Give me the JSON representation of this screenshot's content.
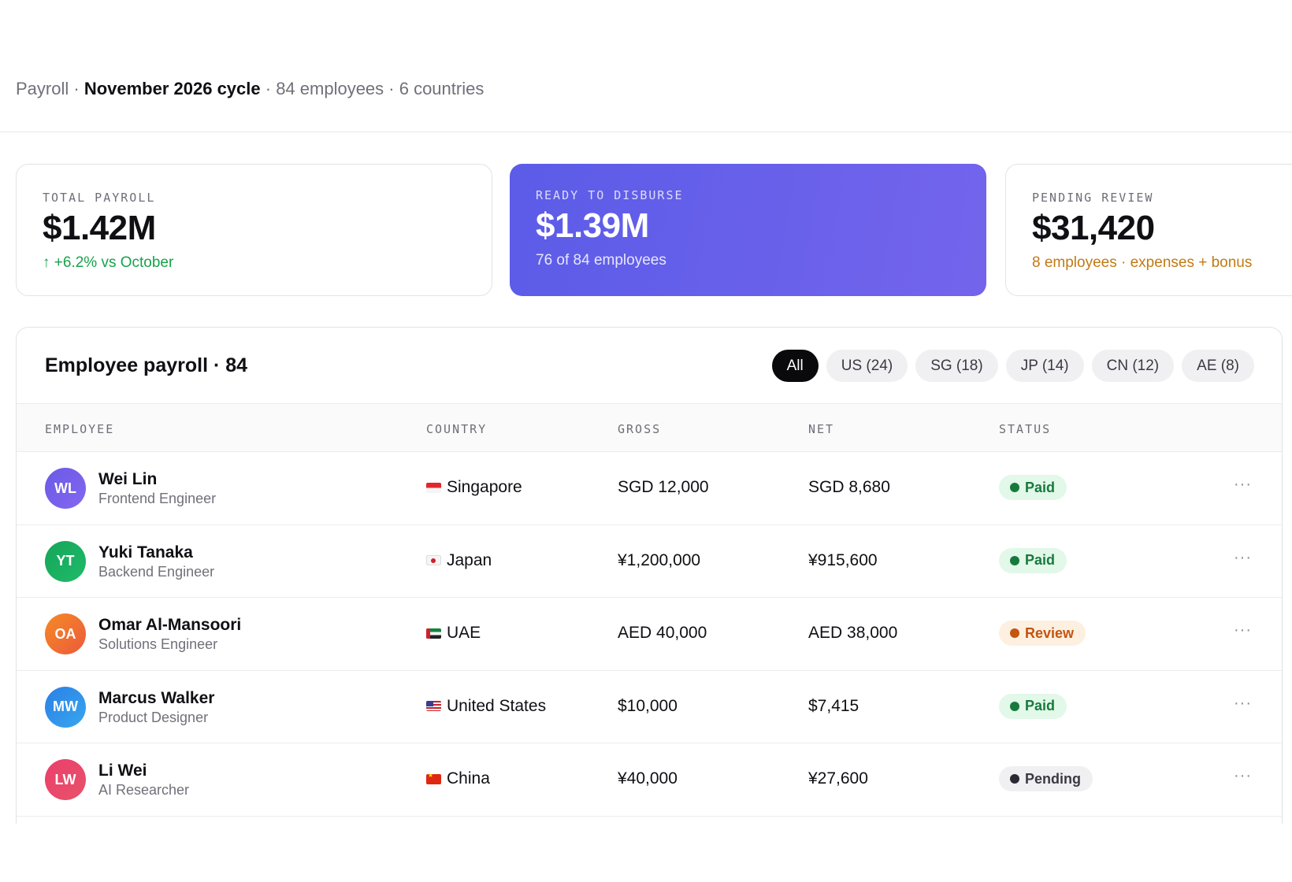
{
  "breadcrumb": {
    "root": "Payroll",
    "sep1": " · ",
    "cycle": "November 2026 cycle",
    "meta": " · 84 employees · 6 countries"
  },
  "summary": {
    "total": {
      "label": "TOTAL PAYROLL",
      "value": "$1.42M",
      "sub": "↑ +6.2% vs October"
    },
    "ready": {
      "label": "READY TO DISBURSE",
      "value": "$1.39M",
      "sub": "76 of 84 employees"
    },
    "pending": {
      "label": "PENDING REVIEW",
      "value": "$31,420",
      "sub": "8 employees · expenses + bonus"
    }
  },
  "table": {
    "title": "Employee payroll · 84",
    "filters": [
      "All",
      "US (24)",
      "SG (18)",
      "JP (14)",
      "CN (12)",
      "AE (8)"
    ],
    "active_filter": "All",
    "columns": [
      "EMPLOYEE",
      "COUNTRY",
      "GROSS",
      "NET",
      "STATUS"
    ],
    "rows": [
      {
        "initials": "WL",
        "name": "Wei Lin",
        "role": "Frontend Engineer",
        "country": "Singapore",
        "flag": "flag-sg-icon",
        "gross": "SGD 12,000",
        "net": "SGD 8,680",
        "status": "Paid"
      },
      {
        "initials": "YT",
        "name": "Yuki Tanaka",
        "role": "Backend Engineer",
        "country": "Japan",
        "flag": "flag-jp-icon",
        "gross": "¥1,200,000",
        "net": "¥915,600",
        "status": "Paid"
      },
      {
        "initials": "OA",
        "name": "Omar Al-Mansoori",
        "role": "Solutions Engineer",
        "country": "UAE",
        "flag": "flag-ae-icon",
        "gross": "AED 40,000",
        "net": "AED 38,000",
        "status": "Review"
      },
      {
        "initials": "MW",
        "name": "Marcus Walker",
        "role": "Product Designer",
        "country": "United States",
        "flag": "flag-us-icon",
        "gross": "$10,000",
        "net": "$7,415",
        "status": "Paid"
      },
      {
        "initials": "LW",
        "name": "Li Wei",
        "role": "AI Researcher",
        "country": "China",
        "flag": "flag-cn-icon",
        "gross": "¥40,000",
        "net": "¥27,600",
        "status": "Pending"
      }
    ],
    "row_action": "···"
  },
  "colors": {
    "accent_gradient_start": "#5b5ce8",
    "accent_gradient_end": "#7464ec",
    "positive": "#16a34a",
    "warning": "#c27a12",
    "avatar_wl": "#6d5ce8",
    "avatar_yt": "#17a85a",
    "avatar_oa": "#f0722e",
    "avatar_mw": "#2f8de8",
    "avatar_lw": "#e8436a"
  }
}
